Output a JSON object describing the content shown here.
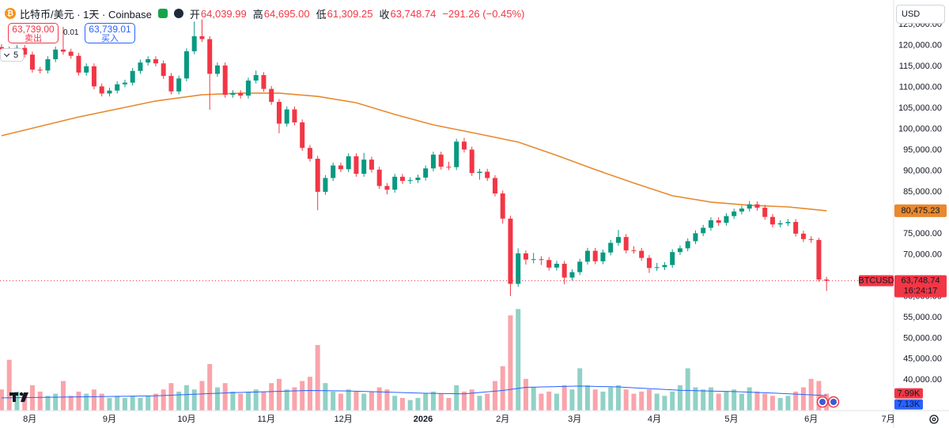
{
  "chart_data": {
    "type": "candlestick",
    "header": {
      "symbol": "比特币/美元 · 1天 · Coinbase",
      "open_label": "开",
      "open": "64,039.99",
      "high_label": "高",
      "high": "64,695.00",
      "low_label": "低",
      "low": "61,309.25",
      "close_label": "收",
      "close": "63,748.74",
      "change": "−291.26 (−0.45%)"
    },
    "quote": {
      "sell": "63,739.00",
      "sell_label": "卖出",
      "spread": "0.01",
      "buy": "63,739.01",
      "buy_label": "买入"
    },
    "interval_menu": "5",
    "currency": "USD",
    "up_color": "#089981",
    "down_color": "#f23645",
    "grid": false,
    "xlim": [
      -0.2,
      115.7
    ],
    "xticks": [
      {
        "value": 3.67,
        "label": "8月"
      },
      {
        "value": 14,
        "label": "9月"
      },
      {
        "value": 24,
        "label": "10月"
      },
      {
        "value": 34.33,
        "label": "11月"
      },
      {
        "value": 44.33,
        "label": "12月"
      },
      {
        "value": 54.67,
        "label": "2026",
        "emphasis": true
      },
      {
        "value": 65,
        "label": "2月"
      },
      {
        "value": 74.33,
        "label": "3月"
      },
      {
        "value": 84.67,
        "label": "4月"
      },
      {
        "value": 94.67,
        "label": "5月"
      },
      {
        "value": 105,
        "label": "6月"
      },
      {
        "value": 115,
        "label": "7月"
      }
    ],
    "ylim": [
      32700,
      130850
    ],
    "yticks": [
      {
        "value": 125000,
        "label": "125,000.00"
      },
      {
        "value": 120000,
        "label": "120,000.00"
      },
      {
        "value": 115000,
        "label": "115,000.00"
      },
      {
        "value": 110000,
        "label": "110,000.00"
      },
      {
        "value": 105000,
        "label": "105,000.00"
      },
      {
        "value": 100000,
        "label": "100,000.00"
      },
      {
        "value": 95000,
        "label": "95,000.00"
      },
      {
        "value": 90000,
        "label": "90,000.00"
      },
      {
        "value": 85000,
        "label": "85,000.00"
      },
      {
        "value": 75000,
        "label": "75,000.00"
      },
      {
        "value": 70000,
        "label": "70,000.00"
      },
      {
        "value": 60000,
        "label": "60,000.00"
      },
      {
        "value": 55000,
        "label": "55,000.00"
      },
      {
        "value": 50000,
        "label": "50,000.00"
      },
      {
        "value": 45000,
        "label": "45,000.00"
      },
      {
        "value": 40000,
        "label": "40,000.00"
      }
    ],
    "open": [
      119600,
      119000,
      118000,
      119400,
      117800,
      114200,
      114000,
      116700,
      119000,
      118500,
      117500,
      113500,
      115000,
      110200,
      108500,
      109200,
      110700,
      111100,
      113900,
      115900,
      116700,
      115700,
      112700,
      109000,
      112100,
      118600,
      122200,
      121500,
      113200,
      115200,
      108200,
      108600,
      108000,
      111600,
      112900,
      109600,
      106500,
      101300,
      104700,
      101600,
      95500,
      92900,
      85000,
      88300,
      91300,
      90400,
      93500,
      89300,
      92700,
      90300,
      86400,
      85500,
      88600,
      87600,
      87800,
      88400,
      90600,
      93900,
      91000,
      90900,
      97000,
      95100,
      89500,
      89800,
      88300,
      84600,
      78600,
      63000,
      70300,
      68800,
      68900,
      68700,
      66900,
      67800,
      64500,
      65800,
      68300,
      70900,
      68400,
      70500,
      72800,
      74200,
      71000,
      70900,
      69200,
      66800,
      67000,
      67500,
      70600,
      71500,
      73200,
      75100,
      76400,
      78200,
      77600,
      79200,
      80300,
      81000,
      82000,
      81200,
      79000,
      77200,
      77500,
      77800,
      75000,
      73700,
      73500,
      64039.99
    ],
    "high": [
      120300,
      119700,
      120100,
      120100,
      118500,
      114900,
      117400,
      119700,
      124400,
      119200,
      118200,
      115700,
      115700,
      110900,
      109900,
      111400,
      111800,
      114600,
      116600,
      117400,
      117400,
      116400,
      113400,
      112800,
      119300,
      125700,
      126200,
      122200,
      115900,
      115900,
      109300,
      109300,
      112300,
      114000,
      113600,
      110300,
      107200,
      105400,
      105400,
      102300,
      96200,
      93600,
      89000,
      92000,
      92000,
      94200,
      94200,
      94300,
      93400,
      91000,
      87100,
      89300,
      89300,
      88500,
      89100,
      91300,
      94600,
      94600,
      92200,
      97700,
      97900,
      95800,
      90500,
      90500,
      89000,
      85300,
      79300,
      71500,
      71000,
      70400,
      69600,
      69400,
      68500,
      68500,
      66500,
      69000,
      71600,
      71600,
      71200,
      73500,
      75900,
      74900,
      72000,
      71600,
      69900,
      68000,
      68200,
      71300,
      72200,
      73900,
      75800,
      77100,
      78900,
      78900,
      79900,
      81000,
      81700,
      82800,
      82700,
      81900,
      79700,
      78200,
      78500,
      78500,
      75700,
      74400,
      74000,
      64695
    ],
    "low": [
      118300,
      117300,
      117300,
      117100,
      113500,
      113300,
      113300,
      116000,
      117800,
      116800,
      112800,
      112800,
      109500,
      107800,
      107800,
      108500,
      110000,
      110400,
      113200,
      115200,
      115000,
      112000,
      108300,
      108300,
      111400,
      117900,
      120800,
      104600,
      112500,
      107500,
      107500,
      107300,
      107300,
      110900,
      108900,
      105800,
      99000,
      100600,
      100900,
      94800,
      92200,
      80600,
      84300,
      87600,
      89700,
      89700,
      88600,
      88600,
      89600,
      85700,
      84400,
      84800,
      86900,
      86900,
      87100,
      87700,
      89900,
      90300,
      90200,
      90200,
      94400,
      88800,
      87900,
      87600,
      83900,
      77400,
      60100,
      62300,
      67600,
      67900,
      67500,
      66200,
      66200,
      62900,
      63800,
      65100,
      67600,
      67700,
      67700,
      69800,
      72100,
      70300,
      70200,
      68500,
      65600,
      66100,
      66300,
      66800,
      69900,
      70800,
      72500,
      74400,
      75700,
      76900,
      76900,
      78500,
      79600,
      80300,
      80500,
      78300,
      76500,
      76500,
      76800,
      74300,
      73000,
      72800,
      63500,
      61309.25
    ],
    "close": [
      119000,
      118000,
      119400,
      117800,
      114200,
      114000,
      116700,
      119000,
      118500,
      117500,
      113500,
      115000,
      110200,
      108500,
      109200,
      110700,
      111100,
      113900,
      115900,
      116700,
      115700,
      112700,
      109000,
      112100,
      118600,
      122200,
      121500,
      113200,
      115200,
      108200,
      108600,
      108000,
      111600,
      112900,
      109600,
      106500,
      101300,
      104700,
      101600,
      95500,
      92900,
      85000,
      88300,
      91300,
      90400,
      93500,
      89300,
      92700,
      90300,
      86400,
      85500,
      88600,
      87600,
      87800,
      88400,
      90600,
      93900,
      91000,
      90900,
      97000,
      95100,
      89500,
      89800,
      88300,
      84600,
      78600,
      63000,
      70300,
      68800,
      68900,
      68700,
      66900,
      67800,
      64500,
      65800,
      68300,
      70900,
      68400,
      70500,
      72800,
      74200,
      71000,
      70900,
      69200,
      66800,
      67000,
      67500,
      70600,
      71500,
      73200,
      75100,
      76400,
      78200,
      77600,
      79200,
      80300,
      81000,
      82000,
      81200,
      79000,
      77200,
      77500,
      77800,
      75000,
      73700,
      73500,
      64040,
      63748.74
    ],
    "ma": {
      "color": "#e8892e",
      "x": [
        0,
        10,
        20,
        26,
        31,
        36,
        41,
        46,
        51,
        56,
        61,
        67,
        72,
        77,
        82,
        87,
        92,
        97,
        102,
        107
      ],
      "values": [
        98400,
        102900,
        106700,
        108200,
        108600,
        108600,
        107800,
        106300,
        103500,
        101000,
        99150,
        96900,
        93700,
        90300,
        87100,
        84050,
        82550,
        81800,
        81400,
        80475.23
      ]
    },
    "volume": {
      "ylim": [
        0,
        194
      ],
      "values": [
        10,
        24,
        9,
        8,
        12,
        9,
        7,
        8,
        14,
        7,
        9,
        8,
        10,
        8,
        6,
        7,
        6,
        7,
        6,
        7,
        8,
        10,
        13,
        9,
        12,
        10,
        14,
        22,
        11,
        13,
        9,
        8,
        9,
        10,
        9,
        13,
        15,
        10,
        11,
        14,
        16,
        31,
        13,
        9,
        8,
        10,
        9,
        8,
        9,
        11,
        10,
        7,
        6,
        5,
        6,
        8,
        9,
        8,
        6,
        12,
        9,
        10,
        7,
        8,
        14,
        21,
        45,
        48,
        15,
        11,
        8,
        9,
        8,
        12,
        10,
        20,
        12,
        10,
        9,
        11,
        12,
        10,
        8,
        9,
        10,
        8,
        7,
        9,
        12,
        20,
        11,
        10,
        11,
        8,
        9,
        10,
        8,
        11,
        9,
        8,
        7,
        6,
        7,
        9,
        11,
        15,
        14,
        7.99
      ],
      "ma": {
        "color": "#2962ff",
        "x": [
          0,
          10,
          20,
          30,
          40,
          45,
          55,
          60,
          65,
          68,
          75,
          80,
          88,
          95,
          100,
          107
        ],
        "values": [
          6,
          6.5,
          7,
          8.5,
          9.5,
          9.3,
          8.2,
          7.9,
          9.5,
          11,
          11.6,
          11.2,
          9.6,
          9,
          8.3,
          7.13
        ]
      }
    },
    "tags": {
      "ma": "80,475.23",
      "symbol": "BTCUSD",
      "last": "63,748.74",
      "countdown": "16:24:17",
      "volume": "7.99K",
      "volume_ma": "7.13K"
    }
  }
}
